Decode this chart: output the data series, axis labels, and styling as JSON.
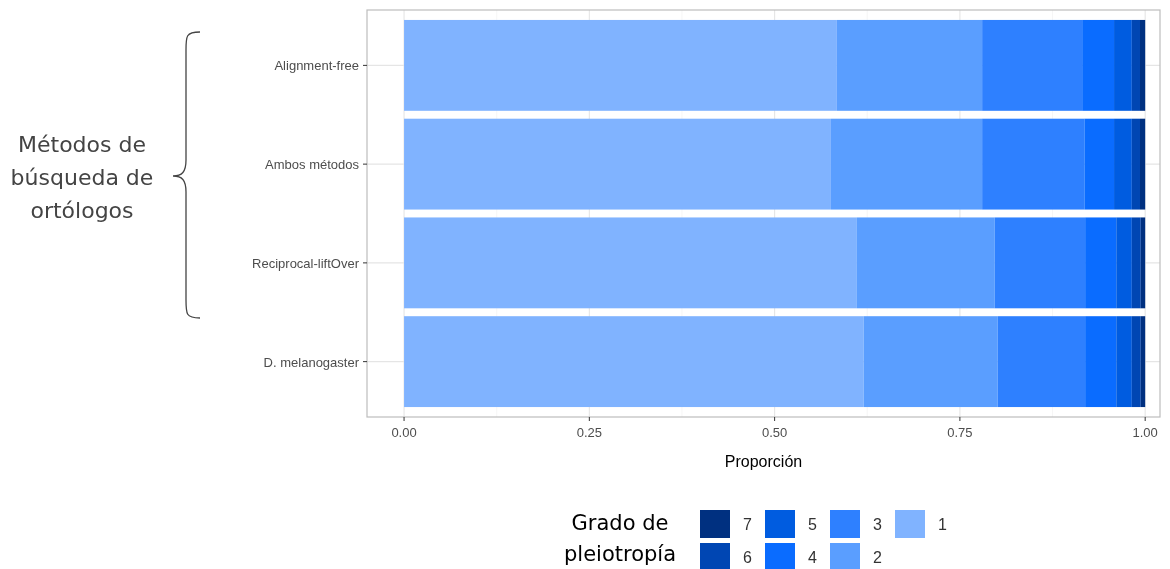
{
  "chart_data": {
    "type": "bar",
    "orientation": "horizontal",
    "stacked": true,
    "xlabel": "Proporción",
    "ylabel": "Métodos de búsqueda de ortólogos",
    "legend_title": "Grado de pleiotropía",
    "categories": [
      "Alignment-free",
      "Ambos métodos",
      "Reciprocal-liftOver",
      "D. melanogaster"
    ],
    "series": [
      {
        "name": "1",
        "color": "#80b3ff",
        "values": [
          0.584,
          0.576,
          0.611,
          0.62
        ]
      },
      {
        "name": "2",
        "color": "#5a9eff",
        "values": [
          0.196,
          0.204,
          0.186,
          0.181
        ]
      },
      {
        "name": "3",
        "color": "#2e80ff",
        "values": [
          0.135,
          0.138,
          0.122,
          0.118
        ]
      },
      {
        "name": "4",
        "color": "#0a6cff",
        "values": [
          0.043,
          0.04,
          0.042,
          0.042
        ]
      },
      {
        "name": "5",
        "color": "#005ce0",
        "values": [
          0.024,
          0.024,
          0.021,
          0.021
        ]
      },
      {
        "name": "6",
        "color": "#0046b3",
        "values": [
          0.011,
          0.011,
          0.012,
          0.012
        ]
      },
      {
        "name": "7",
        "color": "#003080",
        "values": [
          0.007,
          0.007,
          0.006,
          0.006
        ]
      }
    ],
    "xlim": [
      -0.05,
      1.02
    ],
    "xticks": [
      {
        "value": 0,
        "label": "0.00"
      },
      {
        "value": 0.25,
        "label": "0.25"
      },
      {
        "value": 0.5,
        "label": "0.50"
      },
      {
        "value": 0.75,
        "label": "0.75"
      },
      {
        "value": 1,
        "label": "1.00"
      }
    ],
    "grid": true,
    "legend": "bottom"
  }
}
